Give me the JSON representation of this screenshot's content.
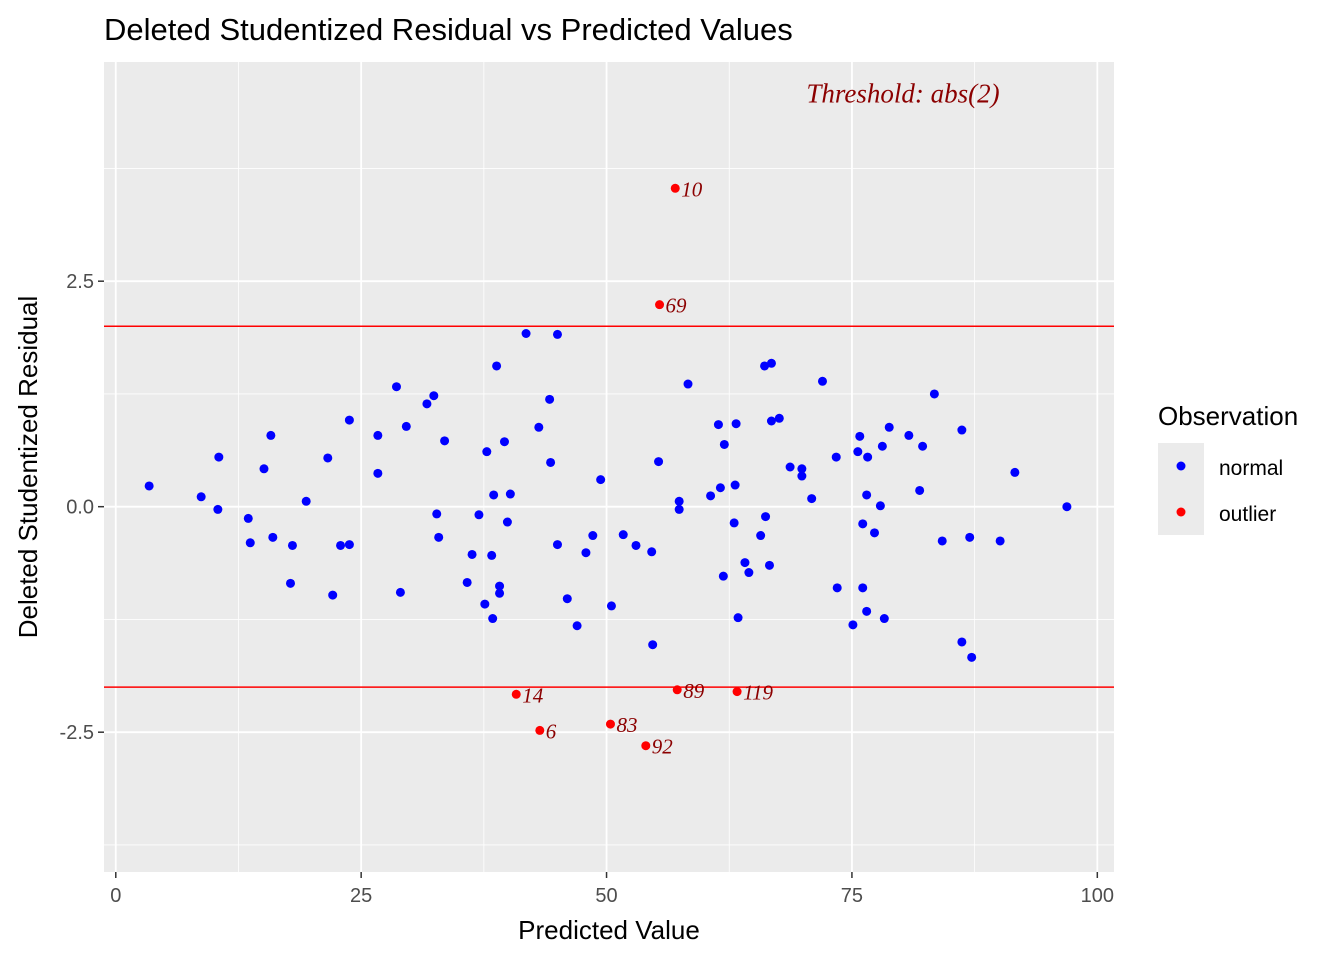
{
  "chart_data": {
    "type": "scatter",
    "title": "Deleted Studentized Residual vs Predicted Values",
    "xlabel": "Predicted Value",
    "ylabel": "Deleted Studentized Residual",
    "xlim": [
      -1.2,
      101.7
    ],
    "ylim": [
      -4.05,
      4.93
    ],
    "x_ticks": [
      0,
      25,
      50,
      75,
      100
    ],
    "x_tick_labels": [
      "0",
      "25",
      "50",
      "75",
      "100"
    ],
    "y_ticks": [
      -2.5,
      0,
      2.5
    ],
    "y_tick_labels": [
      "-2.5",
      "0.0",
      "2.5"
    ],
    "grid": true,
    "threshold": 2,
    "threshold_color": "#FF0000",
    "annotation": {
      "text": "Threshold: abs(2)",
      "x": 80.2,
      "y": 4.58
    },
    "legend": {
      "title": "Observation",
      "position": "right",
      "entries": [
        {
          "label": "normal",
          "color": "#0000FF"
        },
        {
          "label": "outlier",
          "color": "#FF0000"
        }
      ]
    },
    "series": [
      {
        "name": "normal",
        "color": "#0000FF",
        "points": [
          [
            3.4,
            0.23
          ],
          [
            8.7,
            0.11
          ],
          [
            10.5,
            0.55
          ],
          [
            10.4,
            -0.03
          ],
          [
            13.5,
            -0.13
          ],
          [
            13.7,
            -0.4
          ],
          [
            15.1,
            0.42
          ],
          [
            15.8,
            0.79
          ],
          [
            16.0,
            -0.34
          ],
          [
            17.8,
            -0.85
          ],
          [
            18.0,
            -0.43
          ],
          [
            19.4,
            0.06
          ],
          [
            21.6,
            0.54
          ],
          [
            22.1,
            -0.98
          ],
          [
            22.9,
            -0.43
          ],
          [
            23.8,
            0.96
          ],
          [
            23.8,
            -0.42
          ],
          [
            26.7,
            0.79
          ],
          [
            26.7,
            0.37
          ],
          [
            28.6,
            1.33
          ],
          [
            29.0,
            -0.95
          ],
          [
            29.6,
            0.89
          ],
          [
            31.7,
            1.14
          ],
          [
            32.4,
            1.23
          ],
          [
            32.7,
            -0.08
          ],
          [
            32.9,
            -0.34
          ],
          [
            33.5,
            0.73
          ],
          [
            35.8,
            -0.84
          ],
          [
            36.3,
            -0.53
          ],
          [
            37.0,
            -0.09
          ],
          [
            37.6,
            -1.08
          ],
          [
            37.8,
            0.61
          ],
          [
            38.3,
            -0.54
          ],
          [
            38.4,
            -1.24
          ],
          [
            38.5,
            0.13
          ],
          [
            38.8,
            1.56
          ],
          [
            39.1,
            -0.88
          ],
          [
            39.1,
            -0.96
          ],
          [
            39.6,
            0.72
          ],
          [
            39.9,
            -0.17
          ],
          [
            40.2,
            0.14
          ],
          [
            41.8,
            1.92
          ],
          [
            43.1,
            0.88
          ],
          [
            44.2,
            1.19
          ],
          [
            44.3,
            0.49
          ],
          [
            45.0,
            1.91
          ],
          [
            45.0,
            -0.42
          ],
          [
            46.0,
            -1.02
          ],
          [
            47.0,
            -1.32
          ],
          [
            47.9,
            -0.51
          ],
          [
            48.6,
            -0.32
          ],
          [
            49.4,
            0.3
          ],
          [
            50.5,
            -1.1
          ],
          [
            51.7,
            -0.31
          ],
          [
            53.0,
            -0.43
          ],
          [
            54.6,
            -0.5
          ],
          [
            54.7,
            -1.53
          ],
          [
            55.3,
            0.5
          ],
          [
            58.3,
            1.36
          ],
          [
            57.4,
            0.06
          ],
          [
            57.4,
            -0.03
          ],
          [
            60.6,
            0.12
          ],
          [
            61.4,
            0.91
          ],
          [
            61.6,
            0.21
          ],
          [
            61.9,
            -0.77
          ],
          [
            62.0,
            0.69
          ],
          [
            63.0,
            -0.18
          ],
          [
            63.1,
            0.24
          ],
          [
            63.2,
            0.92
          ],
          [
            63.4,
            -1.23
          ],
          [
            64.1,
            -0.62
          ],
          [
            64.5,
            -0.73
          ],
          [
            65.7,
            -0.32
          ],
          [
            66.2,
            -0.11
          ],
          [
            66.1,
            1.56
          ],
          [
            66.6,
            -0.65
          ],
          [
            66.8,
            1.59
          ],
          [
            66.8,
            0.95
          ],
          [
            67.6,
            0.98
          ],
          [
            68.7,
            0.44
          ],
          [
            69.9,
            0.42
          ],
          [
            69.9,
            0.34
          ],
          [
            70.9,
            0.09
          ],
          [
            72.0,
            1.39
          ],
          [
            73.4,
            0.55
          ],
          [
            73.5,
            -0.9
          ],
          [
            75.1,
            -1.31
          ],
          [
            75.6,
            0.61
          ],
          [
            75.8,
            0.78
          ],
          [
            76.1,
            -0.9
          ],
          [
            76.1,
            -0.19
          ],
          [
            76.5,
            -1.16
          ],
          [
            76.5,
            0.13
          ],
          [
            76.6,
            0.55
          ],
          [
            77.3,
            -0.29
          ],
          [
            77.9,
            0.01
          ],
          [
            78.1,
            0.67
          ],
          [
            78.3,
            -1.24
          ],
          [
            78.8,
            0.88
          ],
          [
            80.8,
            0.79
          ],
          [
            81.9,
            0.18
          ],
          [
            82.2,
            0.67
          ],
          [
            83.4,
            1.25
          ],
          [
            84.2,
            -0.38
          ],
          [
            86.2,
            0.85
          ],
          [
            86.2,
            -1.5
          ],
          [
            87.0,
            -0.34
          ],
          [
            87.2,
            -1.67
          ],
          [
            90.1,
            -0.38
          ],
          [
            91.6,
            0.38
          ],
          [
            96.9,
            0.0
          ]
        ]
      },
      {
        "name": "outlier",
        "color": "#FF0000",
        "points": [
          {
            "x": 57.0,
            "y": 3.53,
            "label": "10"
          },
          {
            "x": 55.4,
            "y": 2.24,
            "label": "69"
          },
          {
            "x": 40.8,
            "y": -2.08,
            "label": "14"
          },
          {
            "x": 43.2,
            "y": -2.48,
            "label": "6"
          },
          {
            "x": 50.4,
            "y": -2.41,
            "label": "83"
          },
          {
            "x": 57.2,
            "y": -2.03,
            "label": "89"
          },
          {
            "x": 63.3,
            "y": -2.05,
            "label": "119"
          },
          {
            "x": 54.0,
            "y": -2.65,
            "label": "92"
          }
        ]
      }
    ]
  }
}
